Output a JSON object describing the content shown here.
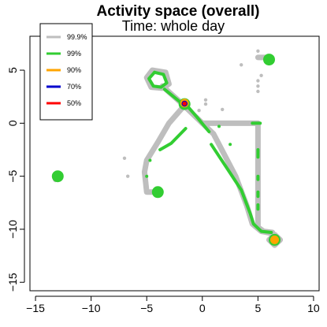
{
  "chart_data": {
    "type": "contour",
    "title": "Activity space (overall)",
    "subtitle": "Time:   whole day",
    "xlabel": "",
    "ylabel": "",
    "xlim": [
      -15.5,
      10.5
    ],
    "ylim": [
      -15.8,
      8.2
    ],
    "xticks": [
      -15,
      -10,
      -5,
      0,
      5,
      10
    ],
    "yticks": [
      -15,
      -10,
      -5,
      0,
      5
    ],
    "xtick_labels": [
      "−15",
      "−10",
      "−5",
      "0",
      "5",
      "10"
    ],
    "ytick_labels": [
      "−15",
      "−10",
      "−5",
      "0",
      "5"
    ],
    "grid": false,
    "legend": {
      "position": "top-left",
      "entries": [
        {
          "label": "99.9%",
          "color": "#bebebe"
        },
        {
          "label": "99%",
          "color": "#32cd32"
        },
        {
          "label": "90%",
          "color": "#ffa500"
        },
        {
          "label": "70%",
          "color": "#0000cd"
        },
        {
          "label": "50%",
          "color": "#ff0000"
        }
      ]
    },
    "series": [
      {
        "name": "99.9%",
        "color": "#bebebe",
        "paths": [
          [
            [
              -4.5,
              5
            ],
            [
              -5,
              4.3
            ],
            [
              -4.6,
              3.4
            ],
            [
              -3.6,
              3.3
            ],
            [
              -3,
              3.7
            ],
            [
              -3.3,
              4.8
            ],
            [
              -4.5,
              5
            ]
          ],
          [
            [
              -3.6,
              3.5
            ],
            [
              -2,
              2
            ],
            [
              -1,
              1
            ],
            [
              1,
              -1
            ],
            [
              2,
              -3
            ],
            [
              3,
              -5
            ],
            [
              4,
              -7.8
            ],
            [
              4.5,
              -9.5
            ],
            [
              5.3,
              -10.2
            ],
            [
              6.3,
              -10.4
            ],
            [
              6.5,
              -11
            ]
          ],
          [
            [
              -1.5,
              1.8
            ],
            [
              -3,
              0
            ],
            [
              -4,
              -1.8
            ],
            [
              -5,
              -3.5
            ],
            [
              -5.2,
              -4.6
            ],
            [
              -5,
              -6.5
            ],
            [
              -4,
              -6.5
            ]
          ],
          [
            [
              0,
              0
            ],
            [
              5,
              0
            ],
            [
              5,
              -9.8
            ],
            [
              5.5,
              -10.2
            ],
            [
              6.3,
              -10.3
            ]
          ],
          [
            [
              6,
              -11
            ],
            [
              6.5,
              -10.5
            ],
            [
              7,
              -11
            ],
            [
              6.5,
              -11.5
            ],
            [
              6,
              -11
            ]
          ],
          [
            [
              5,
              6.2
            ],
            [
              6,
              6.2
            ]
          ],
          [
            [
              -13,
              -5
            ],
            [
              -13.2,
              -5.3
            ]
          ]
        ],
        "points": [
          [
            -6.7,
            -5
          ],
          [
            -7,
            -3.3
          ],
          [
            3.5,
            5.5
          ],
          [
            5,
            6.8
          ],
          [
            5,
            4
          ],
          [
            5,
            3.5
          ],
          [
            5,
            3
          ],
          [
            5.3,
            4.5
          ],
          [
            0.3,
            2.2
          ],
          [
            -0.3,
            1.2
          ],
          [
            1.8,
            1.3
          ],
          [
            0.3,
            1.8
          ]
        ]
      },
      {
        "name": "99%",
        "color": "#32cd32",
        "paths": [
          [
            [
              -4.3,
              4.8
            ],
            [
              -4.8,
              4.2
            ],
            [
              -4.4,
              3.5
            ],
            [
              -3.7,
              3.4
            ],
            [
              -3.2,
              3.8
            ],
            [
              -3.5,
              4.6
            ],
            [
              -4.3,
              4.8
            ]
          ],
          [
            [
              -3.4,
              3.2
            ],
            [
              -2,
              2
            ],
            [
              -1.5,
              1.8
            ],
            [
              -0.5,
              0.6
            ],
            [
              0.6,
              -0.8
            ]
          ],
          [
            [
              -1.5,
              -0.5
            ],
            [
              -2.8,
              -1.9
            ],
            [
              -3.8,
              -2.5
            ]
          ],
          [
            [
              0.8,
              -2
            ],
            [
              2.5,
              -4.7
            ],
            [
              3.5,
              -6.3
            ],
            [
              4.3,
              -8.5
            ],
            [
              4.6,
              -9.5
            ],
            [
              5.3,
              -10.2
            ],
            [
              6.2,
              -10.3
            ]
          ],
          [
            [
              4.5,
              0
            ],
            [
              5.2,
              0
            ]
          ],
          [
            [
              5,
              -2.5
            ],
            [
              5,
              -3.2
            ]
          ],
          [
            [
              5,
              -5
            ],
            [
              5,
              -5.3
            ]
          ],
          [
            [
              5,
              -6.5
            ],
            [
              5,
              -6.9
            ]
          ],
          [
            [
              5,
              -7.7
            ],
            [
              5,
              -8.1
            ]
          ]
        ],
        "blobs": [
          [
            -4,
            -6.5
          ],
          [
            -13,
            -5
          ],
          [
            6,
            6
          ],
          [
            6.5,
            -11
          ],
          [
            -1.6,
            1.8
          ]
        ],
        "points": [
          [
            1.5,
            -0.3
          ],
          [
            2.5,
            -2
          ],
          [
            -5,
            -5
          ],
          [
            -4.7,
            -3.5
          ]
        ]
      },
      {
        "name": "90%",
        "color": "#ffa500",
        "blobs": [
          [
            6.5,
            -11
          ],
          [
            -1.6,
            1.9
          ]
        ]
      },
      {
        "name": "70%",
        "color": "#0000cd",
        "blobs": [
          [
            -1.6,
            1.85
          ]
        ]
      },
      {
        "name": "50%",
        "color": "#ff0000",
        "blobs": [
          [
            -1.6,
            1.85
          ]
        ]
      }
    ]
  }
}
